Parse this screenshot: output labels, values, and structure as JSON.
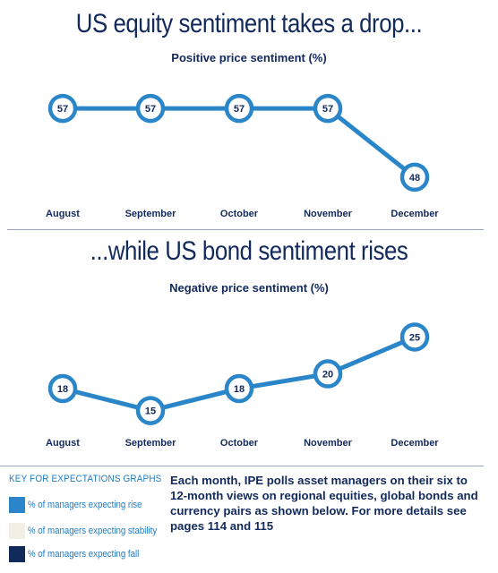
{
  "chart_data": [
    {
      "type": "line",
      "title": "US equity sentiment takes a drop...",
      "subtitle": "Positive price sentiment (%)",
      "categories": [
        "August",
        "September",
        "October",
        "November",
        "December"
      ],
      "values": [
        57,
        57,
        57,
        57,
        48
      ],
      "ylim": [
        46,
        59
      ],
      "grid": false,
      "color": "#2a86c8"
    },
    {
      "type": "line",
      "title": "...while US bond sentiment rises",
      "subtitle": "Negative price sentiment (%)",
      "categories": [
        "August",
        "September",
        "October",
        "November",
        "December"
      ],
      "values": [
        18,
        15,
        18,
        20,
        25
      ],
      "ylim": [
        13.5,
        27
      ],
      "grid": false,
      "color": "#2a86c8"
    }
  ],
  "key": {
    "title": "KEY FOR EXPECTATIONS GRAPHS",
    "items": [
      {
        "label": "% of managers expecting rise",
        "color": "#2a86c8"
      },
      {
        "label": "% of managers expecting stability",
        "color": "#f1efe6"
      },
      {
        "label": "% of managers expecting fall",
        "color": "#12295c"
      }
    ]
  },
  "description": "Each month, IPE polls asset managers on their six to 12-month views on regional equities, global bonds and currency pairs as shown below. For more details see pages 114 and 115"
}
